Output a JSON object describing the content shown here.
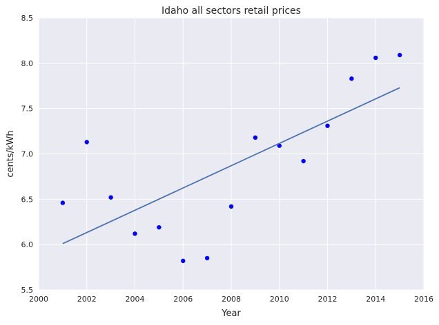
{
  "chart_data": {
    "type": "scatter",
    "title": "Idaho   all sectors retail prices",
    "xlabel": "Year",
    "ylabel": "cents/kWh",
    "xlim": [
      2000,
      2016
    ],
    "ylim": [
      5.5,
      8.5
    ],
    "xticks": [
      "2000",
      "2002",
      "2004",
      "2006",
      "2008",
      "2010",
      "2012",
      "2014",
      "2016"
    ],
    "yticks": [
      "5.5",
      "6.0",
      "6.5",
      "7.0",
      "7.5",
      "8.0",
      "8.5"
    ],
    "grid": true,
    "series": [
      {
        "type": "scatter",
        "color": "#0000ff",
        "x": [
          2001,
          2002,
          2003,
          2004,
          2005,
          2006,
          2007,
          2008,
          2009,
          2010,
          2011,
          2012,
          2013,
          2014,
          2015
        ],
        "y": [
          6.46,
          7.13,
          6.52,
          6.12,
          6.19,
          5.82,
          5.85,
          6.42,
          7.18,
          7.09,
          6.92,
          7.31,
          7.83,
          8.06,
          8.09
        ]
      },
      {
        "type": "line",
        "color": "#4c72b0",
        "x": [
          2001,
          2015
        ],
        "y": [
          6.01,
          7.73
        ]
      }
    ],
    "colors": {
      "background": "#eaeaf2",
      "grid": "#ffffff"
    }
  }
}
